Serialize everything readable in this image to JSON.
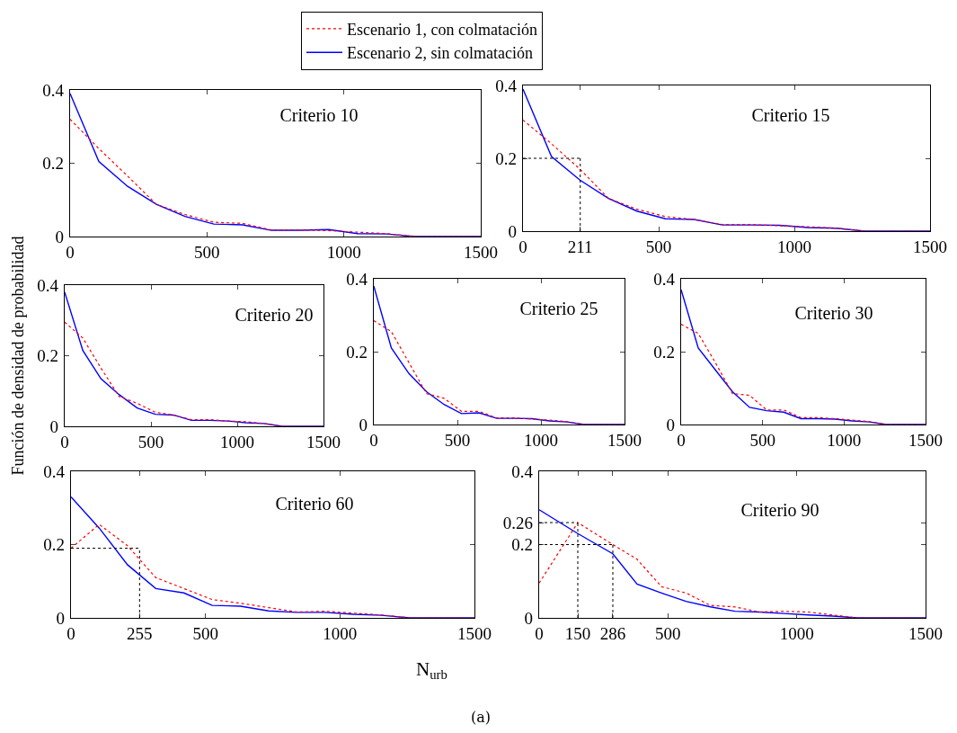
{
  "chart_data": [
    {
      "type": "line",
      "title": "Criterio 10",
      "legend": "top",
      "x": [
        0,
        105,
        210,
        315,
        420,
        525,
        630,
        735,
        840,
        945,
        1050,
        1155,
        1260,
        1500
      ],
      "xlim": [
        0,
        1500
      ],
      "xticks": [
        0,
        500,
        1000,
        1500
      ],
      "ylim": [
        0,
        0.4
      ],
      "yticks": [
        0,
        0.2,
        0.4
      ],
      "grid": false,
      "series": [
        {
          "name": "Escenario 1, con colmatación",
          "color": "#ff0000",
          "line_style": "dotted",
          "values": [
            0.32,
            0.24,
            0.165,
            0.088,
            0.06,
            0.039,
            0.036,
            0.018,
            0.018,
            0.016,
            0.012,
            0.008,
            0,
            0
          ]
        },
        {
          "name": "Escenario 2, sin colmatación",
          "color": "#0000ff",
          "line_style": "solid",
          "values": [
            0.39,
            0.205,
            0.137,
            0.088,
            0.055,
            0.034,
            0.032,
            0.017,
            0.017,
            0.019,
            0.008,
            0.007,
            0,
            0
          ]
        }
      ]
    },
    {
      "type": "line",
      "title": "Criterio 15",
      "x": [
        0,
        105,
        210,
        315,
        420,
        525,
        630,
        735,
        840,
        945,
        1050,
        1155,
        1260,
        1500
      ],
      "xlim": [
        0,
        1500
      ],
      "xticks": [
        0,
        211,
        500,
        1000,
        1500
      ],
      "ylim": [
        0,
        0.4
      ],
      "yticks": [
        0,
        0.2,
        0.4
      ],
      "grid": false,
      "ref_lines": [
        {
          "axis": "x",
          "value": 211,
          "color": "#000000",
          "line_style": "dotted"
        },
        {
          "axis": "y",
          "value": 0.2,
          "color": "#000000",
          "line_style": "dotted"
        }
      ],
      "series": [
        {
          "color": "#ff0000",
          "line_style": "dotted",
          "values": [
            0.305,
            0.24,
            0.17,
            0.09,
            0.06,
            0.04,
            0.032,
            0.018,
            0.018,
            0.015,
            0.012,
            0.008,
            0,
            0
          ]
        },
        {
          "color": "#0000ff",
          "line_style": "solid",
          "values": [
            0.39,
            0.205,
            0.14,
            0.09,
            0.055,
            0.034,
            0.032,
            0.017,
            0.017,
            0.016,
            0.01,
            0.008,
            0,
            0
          ]
        }
      ]
    },
    {
      "type": "line",
      "title": "Criterio 20",
      "ylabel": "Función de densidad de probabilidad",
      "x": [
        0,
        105,
        210,
        315,
        420,
        525,
        630,
        735,
        840,
        945,
        1050,
        1155,
        1260,
        1500
      ],
      "xlim": [
        0,
        1500
      ],
      "xticks": [
        0,
        500,
        1000,
        1500
      ],
      "ylim": [
        0,
        0.4
      ],
      "yticks": [
        0,
        0.2,
        0.4
      ],
      "grid": false,
      "series": [
        {
          "color": "#ff0000",
          "line_style": "dotted",
          "values": [
            0.295,
            0.25,
            0.165,
            0.085,
            0.065,
            0.04,
            0.032,
            0.019,
            0.019,
            0.015,
            0.013,
            0.008,
            0,
            0
          ]
        },
        {
          "color": "#0000ff",
          "line_style": "solid",
          "values": [
            0.38,
            0.215,
            0.135,
            0.09,
            0.052,
            0.034,
            0.032,
            0.017,
            0.017,
            0.015,
            0.01,
            0.008,
            0,
            0
          ]
        }
      ]
    },
    {
      "type": "line",
      "title": "Criterio 25",
      "x": [
        0,
        105,
        210,
        315,
        420,
        525,
        630,
        735,
        840,
        945,
        1050,
        1155,
        1260,
        1500
      ],
      "xlim": [
        0,
        1500
      ],
      "xticks": [
        0,
        500,
        1000,
        1500
      ],
      "ylim": [
        0,
        0.4
      ],
      "yticks": [
        0,
        0.2,
        0.4
      ],
      "grid": false,
      "series": [
        {
          "color": "#ff0000",
          "line_style": "dotted",
          "values": [
            0.285,
            0.255,
            0.17,
            0.085,
            0.072,
            0.036,
            0.036,
            0.018,
            0.018,
            0.015,
            0.012,
            0.008,
            0,
            0
          ]
        },
        {
          "color": "#0000ff",
          "line_style": "solid",
          "values": [
            0.38,
            0.21,
            0.14,
            0.09,
            0.055,
            0.03,
            0.032,
            0.017,
            0.017,
            0.016,
            0.01,
            0.007,
            0,
            0
          ]
        }
      ]
    },
    {
      "type": "line",
      "title": "Criterio 30",
      "x": [
        0,
        105,
        210,
        315,
        420,
        525,
        630,
        735,
        840,
        945,
        1050,
        1155,
        1260,
        1500
      ],
      "xlim": [
        0,
        1500
      ],
      "xticks": [
        0,
        500,
        1000,
        1500
      ],
      "ylim": [
        0,
        0.4
      ],
      "yticks": [
        0,
        0.2,
        0.4
      ],
      "grid": false,
      "series": [
        {
          "color": "#ff0000",
          "line_style": "dotted",
          "values": [
            0.275,
            0.25,
            0.17,
            0.085,
            0.08,
            0.04,
            0.04,
            0.019,
            0.019,
            0.016,
            0.012,
            0.008,
            0,
            0
          ]
        },
        {
          "color": "#0000ff",
          "line_style": "solid",
          "values": [
            0.37,
            0.21,
            0.15,
            0.09,
            0.047,
            0.038,
            0.034,
            0.016,
            0.016,
            0.015,
            0.01,
            0.007,
            0,
            0
          ]
        }
      ]
    },
    {
      "type": "line",
      "title": "Criterio 60",
      "xlabel": "N$_{urb}$",
      "x": [
        0,
        105,
        210,
        315,
        420,
        525,
        630,
        735,
        840,
        945,
        1050,
        1155,
        1260,
        1500
      ],
      "xlim": [
        0,
        1500
      ],
      "xticks": [
        0,
        255,
        500,
        1000,
        1500
      ],
      "ylim": [
        0,
        0.4
      ],
      "yticks": [
        0,
        0.2,
        0.4
      ],
      "grid": false,
      "ref_lines": [
        {
          "axis": "x",
          "value": 255,
          "color": "#000000",
          "line_style": "dotted"
        },
        {
          "axis": "y",
          "value": 0.19,
          "color": "#000000",
          "line_style": "dotted"
        }
      ],
      "series": [
        {
          "color": "#ff0000",
          "line_style": "dotted",
          "values": [
            0.19,
            0.255,
            0.197,
            0.11,
            0.08,
            0.05,
            0.04,
            0.028,
            0.016,
            0.018,
            0.013,
            0.008,
            0,
            0
          ]
        },
        {
          "color": "#0000ff",
          "line_style": "solid",
          "values": [
            0.33,
            0.245,
            0.145,
            0.08,
            0.068,
            0.034,
            0.032,
            0.019,
            0.015,
            0.015,
            0.01,
            0.007,
            0,
            0
          ]
        }
      ]
    },
    {
      "type": "line",
      "title": "Criterio 90",
      "annotations": [
        "(a)"
      ],
      "x": [
        0,
        150,
        286,
        380,
        475,
        570,
        665,
        760,
        855,
        950,
        1045,
        1140,
        1235,
        1500
      ],
      "xlim": [
        0,
        1500
      ],
      "xticks": [
        0,
        150,
        286,
        500,
        1000,
        1500
      ],
      "ylim": [
        0,
        0.4
      ],
      "yticks": [
        0,
        0.2,
        0.26,
        0.4
      ],
      "grid": false,
      "ref_lines": [
        {
          "axis": "x",
          "value": 150,
          "color": "#000000",
          "line_style": "dotted"
        },
        {
          "axis": "x",
          "value": 286,
          "color": "#000000",
          "line_style": "dotted"
        },
        {
          "axis": "y",
          "value": 0.26,
          "color": "#000000",
          "line_style": "dotted"
        },
        {
          "axis": "y",
          "value": 0.2,
          "color": "#000000",
          "line_style": "dotted"
        }
      ],
      "series": [
        {
          "color": "#ff0000",
          "line_style": "dotted",
          "values": [
            0.095,
            0.26,
            0.2,
            0.16,
            0.085,
            0.068,
            0.034,
            0.03,
            0.016,
            0.018,
            0.016,
            0.008,
            0,
            0
          ]
        },
        {
          "color": "#0000ff",
          "line_style": "solid",
          "values": [
            0.295,
            0.23,
            0.175,
            0.092,
            0.068,
            0.045,
            0.03,
            0.018,
            0.016,
            0.012,
            0.008,
            0.005,
            0,
            0
          ]
        }
      ]
    }
  ]
}
